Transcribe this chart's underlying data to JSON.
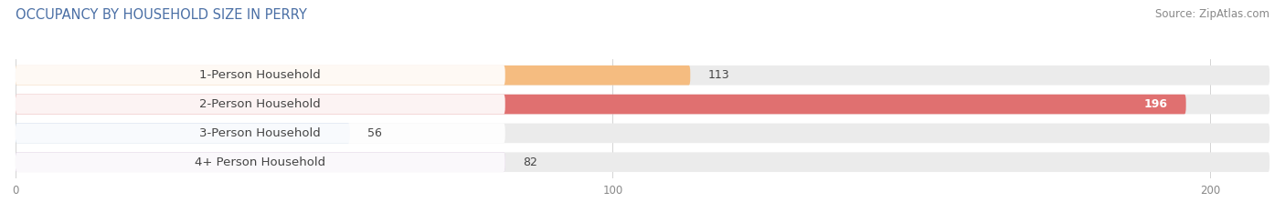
{
  "title": "OCCUPANCY BY HOUSEHOLD SIZE IN PERRY",
  "source": "Source: ZipAtlas.com",
  "categories": [
    "1-Person Household",
    "2-Person Household",
    "3-Person Household",
    "4+ Person Household"
  ],
  "values": [
    113,
    196,
    56,
    82
  ],
  "bar_colors": [
    "#f5bc80",
    "#e07070",
    "#aec6e8",
    "#c9aed4"
  ],
  "bar_bg_color": "#ebebeb",
  "label_bg_color": "#ffffff",
  "xlim": [
    0,
    210
  ],
  "xticks": [
    0,
    100,
    200
  ],
  "figsize": [
    14.06,
    2.33
  ],
  "dpi": 100,
  "title_fontsize": 10.5,
  "label_fontsize": 9.5,
  "value_fontsize": 9,
  "source_fontsize": 8.5,
  "bar_height": 0.68,
  "background_color": "#ffffff",
  "title_color": "#4a6fa5",
  "label_color": "#444444",
  "tick_color": "#888888"
}
